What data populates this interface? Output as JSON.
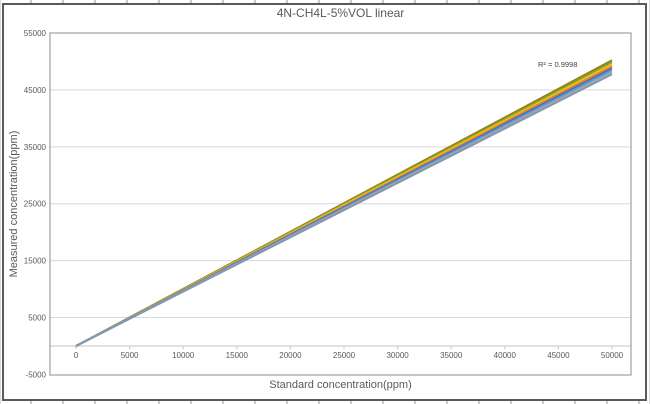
{
  "chart": {
    "title": "4N-CH4L-5%VOL linear",
    "annotation_text": "R² = 0.9998"
  },
  "chart_data": {
    "type": "line",
    "title": "4N-CH4L-5%VOL linear",
    "xlabel": "Standard concentration(ppm)",
    "ylabel": "Measured concentration(ppm)",
    "x": [
      0,
      50000
    ],
    "series": [
      {
        "color": "#9E7C0C",
        "values": [
          0,
          50200
        ]
      },
      {
        "color": "#70AD47",
        "values": [
          0,
          49850
        ]
      },
      {
        "color": "#FFC000",
        "values": [
          0,
          49500
        ]
      },
      {
        "color": "#ED7D31",
        "values": [
          0,
          49150
        ]
      },
      {
        "color": "#4472C4",
        "values": [
          0,
          48800
        ]
      },
      {
        "color": "#5B9BD5",
        "values": [
          0,
          48450
        ]
      },
      {
        "color": "#A5A5A5",
        "values": [
          0,
          48100
        ]
      },
      {
        "color": "#8497B0",
        "values": [
          0,
          47750
        ]
      }
    ],
    "xlim": [
      0,
      50000
    ],
    "ylim": [
      -5000,
      55000
    ],
    "x_ticks": [
      0,
      5000,
      10000,
      15000,
      20000,
      25000,
      30000,
      35000,
      40000,
      45000,
      50000
    ],
    "y_ticks": [
      -5000,
      5000,
      15000,
      25000,
      35000,
      45000,
      55000
    ],
    "grid": "horizontal-only",
    "legend": "none",
    "annotation": {
      "text": "R² = 0.9998",
      "near_x": 45000,
      "near_y": 50500
    },
    "colors": {
      "text": "#595959",
      "gridline": "#d9d9d9",
      "axis_line": "#c6c6c6",
      "plot_border": "#8c8c8c",
      "chart_border": "#595959"
    }
  }
}
